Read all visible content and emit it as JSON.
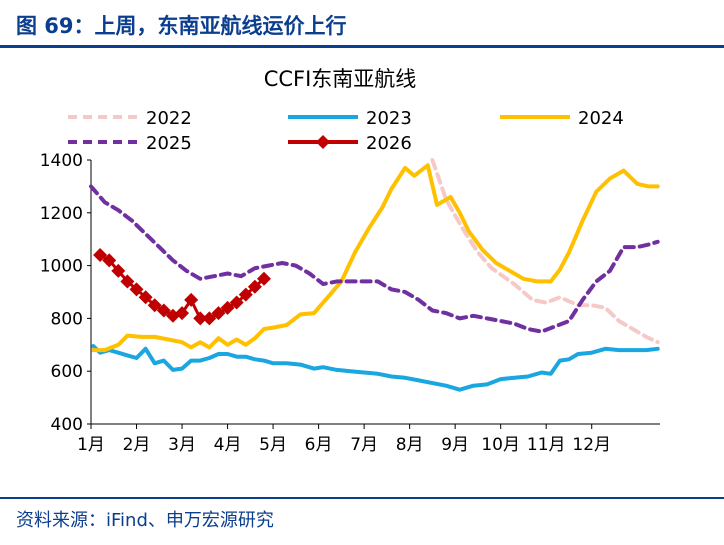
{
  "page": {
    "header": "图 69：上周，东南亚航线运价上行",
    "source": "资料来源：iFind、申万宏源研究"
  },
  "colors": {
    "accent": "#0c3e8f",
    "2022": "#f6c9c9",
    "2023": "#1aa6e0",
    "2024": "#ffc000",
    "2025": "#7030a0",
    "2026": "#c00000"
  },
  "chart_data": {
    "type": "line",
    "title": "CCFI东南亚航线",
    "xlabel": "",
    "ylabel": "",
    "x_ticks": [
      "1月",
      "2月",
      "3月",
      "4月",
      "5月",
      "6月",
      "7月",
      "8月",
      "9月",
      "10月",
      "11月",
      "12月"
    ],
    "y_ticks": [
      400,
      600,
      800,
      1000,
      1200,
      1400
    ],
    "xlim": [
      1,
      13.5
    ],
    "ylim": [
      400,
      1400
    ],
    "grid": false,
    "legend": "top",
    "series": [
      {
        "name": "2022",
        "style": "dashed",
        "color": "#f6c9c9",
        "x": [
          8.5,
          8.8,
          9.2,
          9.5,
          9.8,
          10.3,
          10.7,
          11.0,
          11.3,
          11.7,
          12.0,
          12.3,
          12.6,
          12.9,
          13.2,
          13.45
        ],
        "y": [
          1400,
          1250,
          1130,
          1050,
          990,
          930,
          870,
          860,
          880,
          850,
          850,
          840,
          790,
          760,
          730,
          710
        ]
      },
      {
        "name": "2023",
        "style": "solid",
        "color": "#1aa6e0",
        "x": [
          1.05,
          1.2,
          1.4,
          1.6,
          1.8,
          2.0,
          2.2,
          2.4,
          2.6,
          2.8,
          3.0,
          3.2,
          3.4,
          3.6,
          3.8,
          4.0,
          4.2,
          4.4,
          4.6,
          4.8,
          5.0,
          5.3,
          5.6,
          5.9,
          6.1,
          6.4,
          6.7,
          7.0,
          7.3,
          7.6,
          7.9,
          8.2,
          8.5,
          8.8,
          9.1,
          9.4,
          9.7,
          10.0,
          10.3,
          10.6,
          10.9,
          11.1,
          11.3,
          11.5,
          11.7,
          12.0,
          12.3,
          12.6,
          12.9,
          13.2,
          13.45
        ],
        "y": [
          695,
          670,
          680,
          670,
          660,
          650,
          685,
          630,
          640,
          605,
          610,
          640,
          640,
          650,
          665,
          665,
          655,
          655,
          645,
          640,
          630,
          630,
          625,
          610,
          615,
          605,
          600,
          595,
          590,
          580,
          575,
          565,
          555,
          545,
          530,
          545,
          550,
          570,
          575,
          580,
          595,
          590,
          640,
          645,
          665,
          670,
          685,
          680,
          680,
          680,
          685
        ]
      },
      {
        "name": "2024",
        "style": "solid",
        "color": "#ffc000",
        "x": [
          1.05,
          1.3,
          1.6,
          1.8,
          2.1,
          2.4,
          2.7,
          3.0,
          3.2,
          3.4,
          3.6,
          3.8,
          4.0,
          4.2,
          4.4,
          4.6,
          4.8,
          5.0,
          5.3,
          5.6,
          5.9,
          6.2,
          6.5,
          6.8,
          7.1,
          7.4,
          7.6,
          7.9,
          8.1,
          8.4,
          8.6,
          8.9,
          9.1,
          9.3,
          9.6,
          9.9,
          10.2,
          10.5,
          10.8,
          11.1,
          11.3,
          11.5,
          11.8,
          12.1,
          12.4,
          12.7,
          13.0,
          13.25,
          13.45
        ],
        "y": [
          680,
          680,
          700,
          735,
          730,
          730,
          720,
          710,
          690,
          710,
          690,
          725,
          700,
          720,
          700,
          725,
          760,
          765,
          775,
          815,
          820,
          880,
          940,
          1050,
          1140,
          1220,
          1290,
          1370,
          1340,
          1380,
          1230,
          1260,
          1200,
          1130,
          1060,
          1010,
          980,
          950,
          940,
          940,
          985,
          1050,
          1170,
          1280,
          1330,
          1360,
          1310,
          1300,
          1300
        ]
      },
      {
        "name": "2025",
        "style": "dashed",
        "color": "#7030a0",
        "x": [
          1.0,
          1.3,
          1.6,
          1.9,
          2.2,
          2.5,
          2.8,
          3.1,
          3.4,
          3.7,
          4.0,
          4.3,
          4.6,
          4.9,
          5.2,
          5.5,
          5.8,
          6.1,
          6.4,
          6.7,
          7.0,
          7.3,
          7.6,
          7.9,
          8.2,
          8.5,
          8.8,
          9.1,
          9.4,
          9.7,
          10.0,
          10.3,
          10.6,
          10.9,
          11.2,
          11.5,
          11.8,
          12.1,
          12.4,
          12.7,
          13.0,
          13.25,
          13.45
        ],
        "y": [
          1300,
          1240,
          1210,
          1170,
          1120,
          1070,
          1020,
          980,
          950,
          960,
          970,
          960,
          990,
          1000,
          1010,
          1000,
          970,
          930,
          940,
          940,
          940,
          940,
          910,
          900,
          870,
          830,
          820,
          800,
          810,
          800,
          790,
          780,
          760,
          750,
          770,
          790,
          870,
          940,
          980,
          1070,
          1070,
          1080,
          1090
        ]
      },
      {
        "name": "2026",
        "style": "diamond",
        "color": "#c00000",
        "x": [
          1.2,
          1.4,
          1.6,
          1.8,
          2.0,
          2.2,
          2.4,
          2.6,
          2.8,
          3.0,
          3.2,
          3.4,
          3.6,
          3.8,
          4.0,
          4.2,
          4.4,
          4.6,
          4.8
        ],
        "y": [
          1040,
          1020,
          980,
          940,
          910,
          880,
          850,
          830,
          810,
          820,
          870,
          800,
          800,
          820,
          840,
          860,
          890,
          920,
          950
        ]
      }
    ]
  }
}
